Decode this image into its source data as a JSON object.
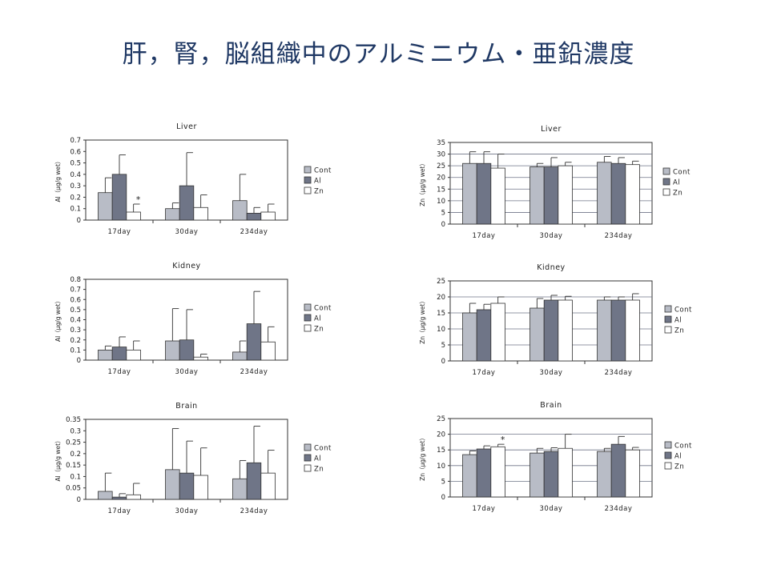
{
  "page": {
    "title": "肝，腎，脳組織中のアルミニウム・亜鉛濃度"
  },
  "colors": {
    "Cont": "#b8bcc6",
    "Al": "#6f7587",
    "Zn": "#ffffff",
    "axis": "#333333",
    "grid": "#6f7587"
  },
  "chart_data": [
    {
      "type": "bar",
      "title": "Liver",
      "ylabel": "Al（μg/g wet）",
      "categories": [
        "17day",
        "30day",
        "234day"
      ],
      "ylim": [
        0,
        0.7
      ],
      "ticks": [
        "0",
        "0.1",
        "0.2",
        "0.3",
        "0.4",
        "0.5",
        "0.6",
        "0.7"
      ],
      "tick_values": [
        0,
        0.1,
        0.2,
        0.3,
        0.4,
        0.5,
        0.6,
        0.7
      ],
      "series": [
        {
          "name": "Cont",
          "values": [
            0.24,
            0.1,
            0.17
          ],
          "errors": [
            0.13,
            0.05,
            0.23
          ]
        },
        {
          "name": "Al",
          "values": [
            0.4,
            0.3,
            0.06
          ],
          "errors": [
            0.17,
            0.29,
            0.05
          ]
        },
        {
          "name": "Zn",
          "values": [
            0.07,
            0.11,
            0.07
          ],
          "errors": [
            0.07,
            0.11,
            0.07
          ]
        }
      ],
      "annotations": [
        {
          "text": "*",
          "category": 0,
          "series": 2
        }
      ],
      "legend_position": "right"
    },
    {
      "type": "bar",
      "title": "Liver",
      "ylabel": "Zn（μg/g wet）",
      "categories": [
        "17day",
        "30day",
        "234day"
      ],
      "ylim": [
        0,
        35
      ],
      "ticks": [
        "0",
        "5",
        "10",
        "15",
        "20",
        "25",
        "30",
        "35"
      ],
      "tick_values": [
        0,
        5,
        10,
        15,
        20,
        25,
        30,
        35
      ],
      "series": [
        {
          "name": "Cont",
          "values": [
            26,
            24.5,
            26.5
          ],
          "errors": [
            5,
            1.5,
            2.5
          ]
        },
        {
          "name": "Al",
          "values": [
            26,
            24.5,
            26
          ],
          "errors": [
            5,
            4,
            2.5
          ]
        },
        {
          "name": "Zn",
          "values": [
            24,
            25,
            25.5
          ],
          "errors": [
            6,
            1.5,
            1.5
          ]
        }
      ],
      "annotations": [],
      "legend_position": "right"
    },
    {
      "type": "bar",
      "title": "Kidney",
      "ylabel": "Al（μg/g wet）",
      "categories": [
        "17day",
        "30day",
        "234day"
      ],
      "ylim": [
        0,
        0.8
      ],
      "ticks": [
        "0",
        "0.1",
        "0.2",
        "0.3",
        "0.4",
        "0.5",
        "0.6",
        "0.7",
        "0.8"
      ],
      "tick_values": [
        0,
        0.1,
        0.2,
        0.3,
        0.4,
        0.5,
        0.6,
        0.7,
        0.8
      ],
      "series": [
        {
          "name": "Cont",
          "values": [
            0.1,
            0.19,
            0.08
          ],
          "errors": [
            0.04,
            0.32,
            0.11
          ]
        },
        {
          "name": "Al",
          "values": [
            0.13,
            0.2,
            0.36
          ],
          "errors": [
            0.1,
            0.3,
            0.32
          ]
        },
        {
          "name": "Zn",
          "values": [
            0.1,
            0.03,
            0.18
          ],
          "errors": [
            0.09,
            0.03,
            0.15
          ]
        }
      ],
      "annotations": [],
      "legend_position": "right"
    },
    {
      "type": "bar",
      "title": "Kidney",
      "ylabel": "Zn（μg/g wet）",
      "categories": [
        "17day",
        "30day",
        "234day"
      ],
      "ylim": [
        0,
        25
      ],
      "ticks": [
        "0",
        "5",
        "10",
        "15",
        "20",
        "25"
      ],
      "tick_values": [
        0,
        5,
        10,
        15,
        20,
        25
      ],
      "series": [
        {
          "name": "Cont",
          "values": [
            15,
            16.5,
            19
          ],
          "errors": [
            3,
            3,
            1
          ]
        },
        {
          "name": "Al",
          "values": [
            16,
            19,
            19
          ],
          "errors": [
            1.7,
            1.5,
            1
          ]
        },
        {
          "name": "Zn",
          "values": [
            18,
            19,
            19
          ],
          "errors": [
            2,
            1.2,
            2
          ]
        }
      ],
      "annotations": [],
      "legend_position": "right"
    },
    {
      "type": "bar",
      "title": "Brain",
      "ylabel": "Al（μg/g wet）",
      "categories": [
        "17day",
        "30day",
        "234day"
      ],
      "ylim": [
        0,
        0.35
      ],
      "ticks": [
        "0",
        "0.05",
        "0.1",
        "0.15",
        "0.2",
        "0.25",
        "0.3",
        "0.35"
      ],
      "tick_values": [
        0,
        0.05,
        0.1,
        0.15,
        0.2,
        0.25,
        0.3,
        0.35
      ],
      "series": [
        {
          "name": "Cont",
          "values": [
            0.035,
            0.13,
            0.09
          ],
          "errors": [
            0.08,
            0.18,
            0.08
          ]
        },
        {
          "name": "Al",
          "values": [
            0.01,
            0.115,
            0.16
          ],
          "errors": [
            0.015,
            0.14,
            0.16
          ]
        },
        {
          "name": "Zn",
          "values": [
            0.02,
            0.105,
            0.115
          ],
          "errors": [
            0.05,
            0.12,
            0.1
          ]
        }
      ],
      "annotations": [],
      "legend_position": "right"
    },
    {
      "type": "bar",
      "title": "Brain",
      "ylabel": "Zn（μg/g wet）",
      "categories": [
        "17day",
        "30day",
        "234day"
      ],
      "ylim": [
        0,
        25
      ],
      "ticks": [
        "0",
        "5",
        "10",
        "15",
        "20",
        "25"
      ],
      "tick_values": [
        0,
        5,
        10,
        15,
        20,
        25
      ],
      "series": [
        {
          "name": "Cont",
          "values": [
            13.5,
            14,
            14.5
          ],
          "errors": [
            1.2,
            1.5,
            1
          ]
        },
        {
          "name": "Al",
          "values": [
            15.3,
            14.5,
            16.8
          ],
          "errors": [
            1,
            1.2,
            2.5
          ]
        },
        {
          "name": "Zn",
          "values": [
            16,
            15.5,
            15
          ],
          "errors": [
            0.8,
            4.5,
            0.8
          ]
        }
      ],
      "annotations": [
        {
          "text": "*",
          "category": 0,
          "series": 2
        }
      ],
      "legend_position": "right"
    }
  ]
}
